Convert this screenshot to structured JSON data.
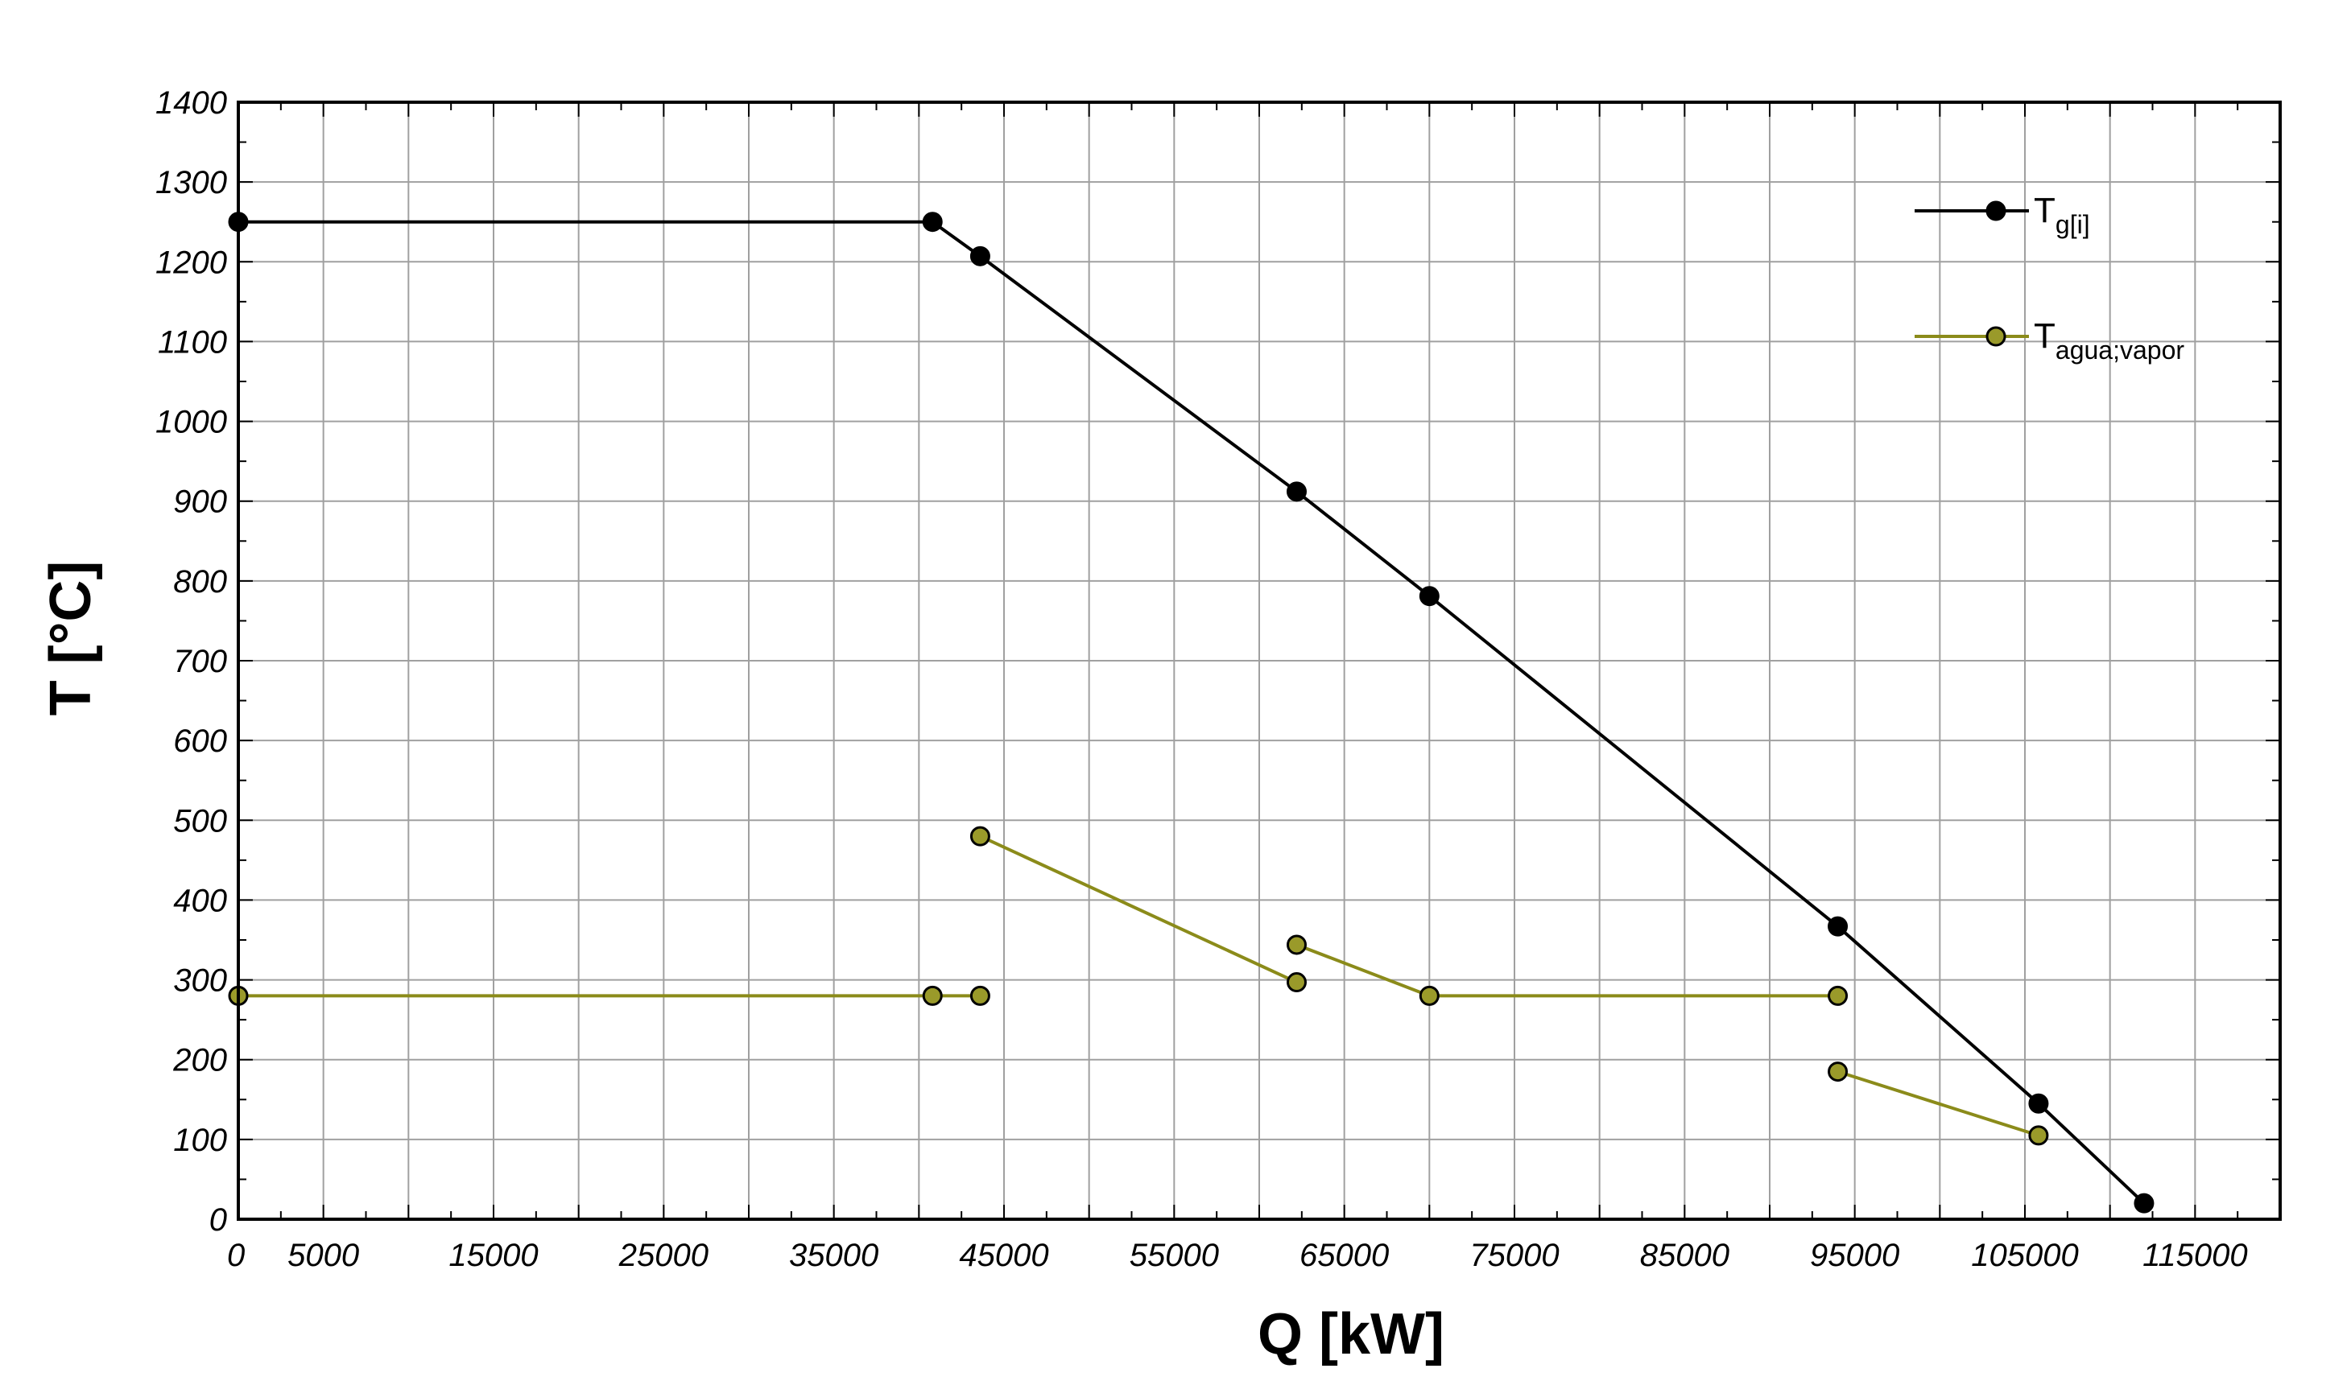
{
  "chart_data": {
    "type": "line",
    "title": "",
    "xlabel": "Q [kW]",
    "ylabel": "T [°C]",
    "xlim": [
      0,
      120000
    ],
    "ylim": [
      0,
      1400
    ],
    "xticks": [
      0,
      5000,
      15000,
      25000,
      35000,
      45000,
      55000,
      65000,
      75000,
      85000,
      95000,
      105000,
      115000
    ],
    "yticks": [
      0,
      100,
      200,
      300,
      400,
      500,
      600,
      700,
      800,
      900,
      1000,
      1100,
      1200,
      1300,
      1400
    ],
    "grid": true,
    "legend_position": "top-right",
    "series": [
      {
        "name": "T",
        "name_sub": "g[i]",
        "color": "#000000",
        "marker_fill": "#000000",
        "segments": [
          [
            [
              0,
              1250
            ],
            [
              40800,
              1250
            ],
            [
              43600,
              1207
            ],
            [
              62200,
              912
            ],
            [
              70000,
              781
            ],
            [
              94000,
              367
            ],
            [
              105800,
              145
            ],
            [
              112000,
              20
            ]
          ]
        ]
      },
      {
        "name": "T",
        "name_sub": "agua;vapor",
        "color": "#8b8b1a",
        "marker_fill": "#9a9a2a",
        "segments": [
          [
            [
              0,
              280
            ],
            [
              40800,
              280
            ],
            [
              43600,
              280
            ]
          ],
          [
            [
              43600,
              480
            ],
            [
              62200,
              297
            ]
          ],
          [
            [
              62200,
              344
            ],
            [
              70000,
              280
            ],
            [
              94000,
              280
            ]
          ],
          [
            [
              94000,
              185
            ],
            [
              105800,
              105
            ]
          ]
        ]
      }
    ]
  }
}
